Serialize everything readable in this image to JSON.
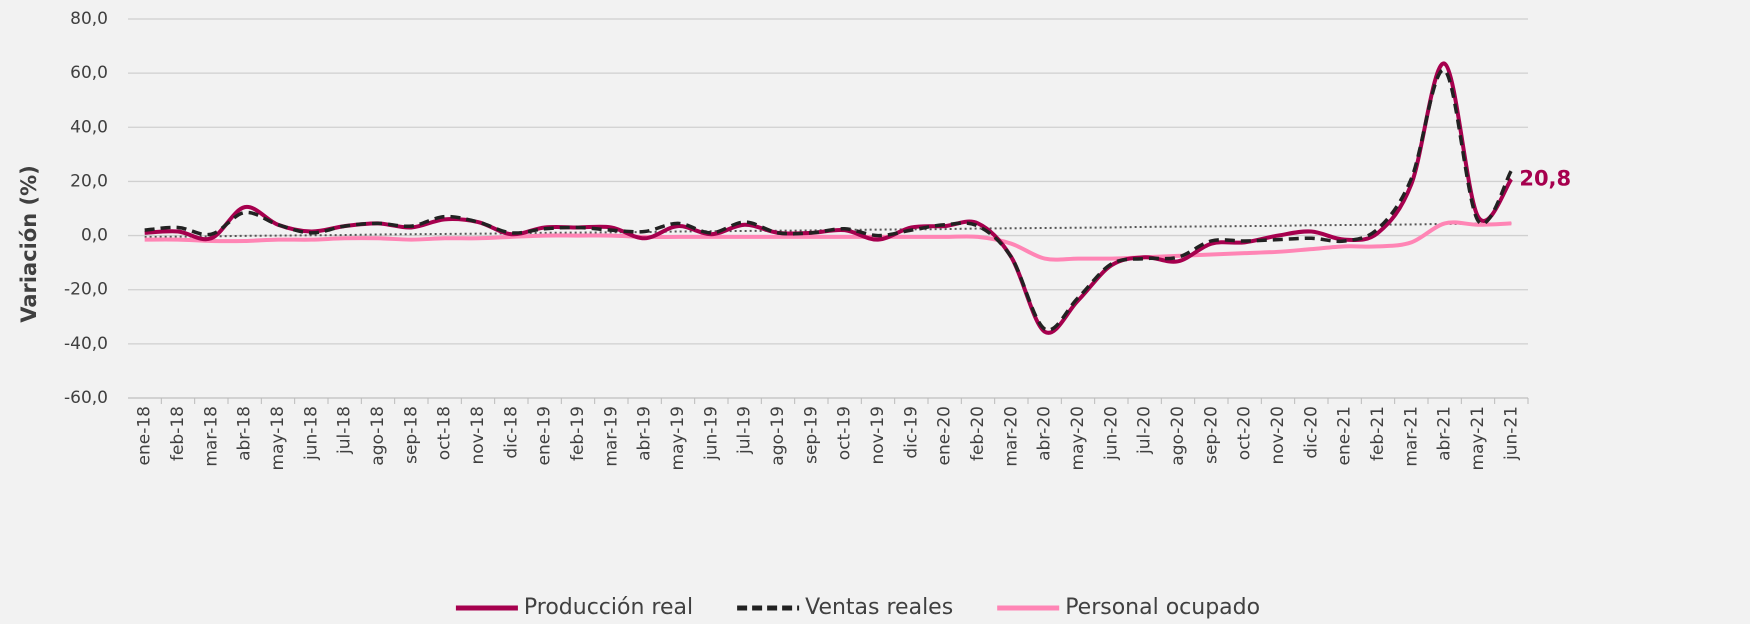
{
  "chart_data": {
    "type": "line",
    "y_label": "Variación (%)",
    "categories": [
      "ene-18",
      "feb-18",
      "mar-18",
      "abr-18",
      "may-18",
      "jun-18",
      "jul-18",
      "ago-18",
      "sep-18",
      "oct-18",
      "nov-18",
      "dic-18",
      "ene-19",
      "feb-19",
      "mar-19",
      "abr-19",
      "may-19",
      "jun-19",
      "jul-19",
      "ago-19",
      "sep-19",
      "oct-19",
      "nov-19",
      "dic-19",
      "ene-20",
      "feb-20",
      "mar-20",
      "abr-20",
      "may-20",
      "jun-20",
      "jul-20",
      "ago-20",
      "sep-20",
      "oct-20",
      "nov-20",
      "dic-20",
      "ene-21",
      "feb-21",
      "mar-21",
      "abr-21",
      "may-21",
      "jun-21"
    ],
    "series": [
      {
        "name": "Producción real",
        "color": "#a6004e",
        "dash": false,
        "values": [
          1,
          1.5,
          -1,
          10.5,
          4,
          1.5,
          3.5,
          4.5,
          3,
          6,
          5,
          0.5,
          3,
          3,
          3,
          -1,
          3.5,
          0.5,
          4,
          1,
          1,
          2,
          -1.5,
          3,
          3.5,
          4.5,
          -8,
          -35.5,
          -24,
          -11,
          -8,
          -9.5,
          -3,
          -2.5,
          0,
          1.5,
          -1.5,
          1,
          19,
          63.5,
          7,
          20.8
        ],
        "value_labels": [
          null,
          null,
          null,
          null,
          null,
          null,
          null,
          null,
          null,
          null,
          null,
          null,
          null,
          null,
          null,
          null,
          null,
          null,
          null,
          null,
          null,
          null,
          null,
          null,
          null,
          null,
          null,
          null,
          null,
          null,
          null,
          null,
          null,
          null,
          null,
          null,
          null,
          null,
          null,
          null,
          null,
          "20,8"
        ]
      },
      {
        "name": "Ventas reales",
        "color": "#222222",
        "dash": true,
        "values": [
          2,
          3,
          0.5,
          8.5,
          4,
          1,
          3.5,
          4.5,
          3.5,
          7,
          5,
          1,
          2.5,
          3,
          2,
          1.5,
          4.5,
          1,
          5,
          1,
          1,
          2.5,
          0,
          2,
          4,
          3.5,
          -8,
          -34.5,
          -23,
          -10.5,
          -8.5,
          -8,
          -2,
          -2,
          -1.5,
          -1,
          -2,
          2.5,
          21,
          61,
          5.5,
          24
        ]
      },
      {
        "name": "Personal ocupado",
        "color": "#ff85b5",
        "dash": false,
        "values": [
          -1.5,
          -1.5,
          -2,
          -2,
          -1.5,
          -1.5,
          -1,
          -1,
          -1.5,
          -1,
          -1,
          -0.5,
          0,
          0,
          0,
          -0.5,
          -0.5,
          -0.5,
          -0.5,
          -0.5,
          -0.5,
          -0.5,
          -0.5,
          -0.5,
          -0.5,
          -0.5,
          -3,
          -8.5,
          -8.5,
          -8.5,
          -8,
          -7.5,
          -7,
          -6.5,
          -6,
          -5,
          -4,
          -4,
          -2.5,
          4.5,
          4,
          4.5
        ]
      }
    ],
    "trend": {
      "color": "#555555",
      "values": [
        -0.5,
        -0.4,
        -0.3,
        -0.1,
        0,
        0.1,
        0.2,
        0.4,
        0.5,
        0.6,
        0.7,
        0.8,
        1,
        1.1,
        1.2,
        1.3,
        1.5,
        1.6,
        1.7,
        1.8,
        1.9,
        2.1,
        2.2,
        2.3,
        2.4,
        2.6,
        2.7,
        2.8,
        2.9,
        3,
        3.2,
        3.3,
        3.4,
        3.5,
        3.6,
        3.8,
        3.9,
        4,
        4.1,
        4.3,
        4.4,
        4.5
      ]
    },
    "ylim": [
      -60,
      80
    ],
    "yticks": [
      {
        "value": -60,
        "label": "-60,0"
      },
      {
        "value": -40,
        "label": "-40,0"
      },
      {
        "value": -20,
        "label": "-20,0"
      },
      {
        "value": 0,
        "label": "0,0"
      },
      {
        "value": 20,
        "label": "20,0"
      },
      {
        "value": 40,
        "label": "40,0"
      },
      {
        "value": 60,
        "label": "60,0"
      },
      {
        "value": 80,
        "label": "80,0"
      }
    ],
    "grid": true,
    "legend": "bottom"
  }
}
